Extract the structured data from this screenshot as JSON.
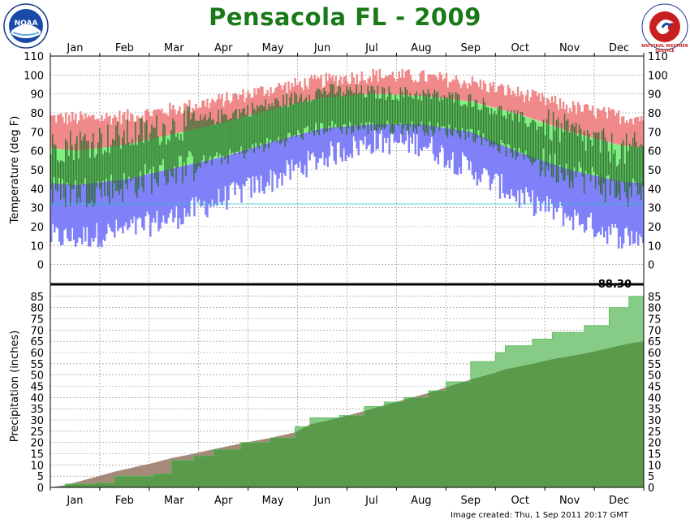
{
  "header": {
    "title": "Pensacola FL - 2009",
    "logo_left_text": "NOAA",
    "logo_right_text": "NATIONAL WEATHER SERVICE"
  },
  "footer": {
    "created": "Image created: Thu, 1 Sep 2011 20:17 GMT"
  },
  "colors": {
    "record_band": "#f08a8a",
    "normal_band": "#80f080",
    "low_band": "#8080f8",
    "actual_range": "#2a6a2a",
    "observed_precip": "#86cc86",
    "normal_precip": "#5a9a4a",
    "deficit_precip": "#a58a7a",
    "grid": "#888888"
  },
  "chart_data": [
    {
      "type": "area",
      "panel": "temperature",
      "ylabel": "Temperature (deg F)",
      "ylim": [
        -10,
        110
      ],
      "yticks": [
        0,
        10,
        20,
        30,
        40,
        50,
        60,
        70,
        80,
        90,
        100,
        110
      ],
      "months": [
        "Jan",
        "Feb",
        "Mar",
        "Apr",
        "May",
        "Jun",
        "Jul",
        "Aug",
        "Sep",
        "Oct",
        "Nov",
        "Dec"
      ],
      "freezing_line": 32,
      "series": [
        {
          "key": "record_high",
          "values": [
            77,
            78,
            82,
            87,
            93,
            97,
            100,
            99,
            96,
            90,
            83,
            78
          ]
        },
        {
          "key": "normal_high",
          "values": [
            60,
            63,
            69,
            75,
            82,
            88,
            90,
            89,
            86,
            79,
            70,
            63
          ]
        },
        {
          "key": "normal_low",
          "values": [
            42,
            45,
            51,
            57,
            65,
            72,
            74,
            74,
            70,
            59,
            50,
            44
          ]
        },
        {
          "key": "record_low",
          "values": [
            14,
            18,
            25,
            35,
            45,
            57,
            65,
            64,
            50,
            35,
            25,
            15
          ]
        },
        {
          "key": "actual_high",
          "values": [
            62,
            66,
            71,
            78,
            84,
            91,
            90,
            89,
            86,
            76,
            68,
            58
          ]
        },
        {
          "key": "actual_low",
          "values": [
            40,
            43,
            52,
            57,
            65,
            73,
            73,
            73,
            70,
            58,
            51,
            40
          ]
        }
      ]
    },
    {
      "type": "area",
      "panel": "precipitation",
      "ylabel": "Precipitation (inches)",
      "ylim": [
        0,
        90
      ],
      "yticks": [
        0,
        5,
        10,
        15,
        20,
        25,
        30,
        35,
        40,
        45,
        50,
        55,
        60,
        65,
        70,
        75,
        80,
        85
      ],
      "total_label": "88.30",
      "x": [
        0,
        0.3,
        0.9,
        1.3,
        2.1,
        2.45,
        2.9,
        3.3,
        3.85,
        4.45,
        4.95,
        5.25,
        5.85,
        6.35,
        6.75,
        7.15,
        7.65,
        8.0,
        8.5,
        9.0,
        9.2,
        9.75,
        10.15,
        10.8,
        11.3,
        11.7,
        12.0
      ],
      "observed": [
        0,
        1.5,
        2,
        5,
        6,
        12,
        14,
        16.8,
        20,
        22,
        27,
        31,
        32,
        36,
        38,
        40,
        43,
        47,
        56,
        60,
        63,
        66,
        69,
        72,
        80,
        85,
        88.3
      ],
      "normal": [
        0,
        1,
        4.5,
        7,
        11,
        13,
        15,
        17,
        19.5,
        22,
        24.5,
        28,
        31,
        34,
        36.5,
        39,
        42,
        44.5,
        48,
        51,
        52.5,
        55,
        57,
        59.5,
        62,
        64,
        65
      ]
    }
  ]
}
